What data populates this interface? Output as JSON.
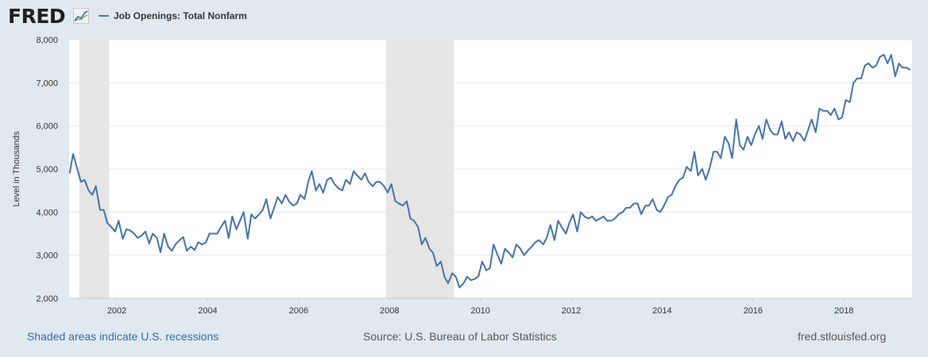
{
  "header": {
    "logo_text": "FRED",
    "logo_icon": "chart-line-icon",
    "series_label": "Job Openings: Total Nonfarm",
    "series_color": "#4572a7"
  },
  "footer": {
    "recessions_note": "Shaded areas indicate U.S. recessions",
    "source": "Source: U.S. Bureau of Labor Statistics",
    "site": "fred.stlouisfed.org"
  },
  "chart_data": {
    "type": "line",
    "title": "",
    "xlabel": "",
    "ylabel": "Level in Thousands",
    "xlim": [
      2000.95,
      2019.5
    ],
    "ylim": [
      2000,
      8000
    ],
    "y_ticks": [
      2000,
      3000,
      4000,
      5000,
      6000,
      7000,
      8000
    ],
    "y_tick_labels": [
      "2,000",
      "3,000",
      "4,000",
      "5,000",
      "6,000",
      "7,000",
      "8,000"
    ],
    "x_ticks": [
      2002,
      2004,
      2006,
      2008,
      2010,
      2012,
      2014,
      2016,
      2018
    ],
    "x_tick_labels": [
      "2002",
      "2004",
      "2006",
      "2008",
      "2010",
      "2012",
      "2014",
      "2016",
      "2018"
    ],
    "grid": true,
    "recessions": [
      [
        2001.17,
        2001.83
      ],
      [
        2007.92,
        2009.42
      ]
    ],
    "recession_color": "#e5e5e5",
    "series": [
      {
        "name": "Job Openings: Total Nonfarm",
        "color": "#4572a7",
        "x": [
          2000.96,
          2001.04,
          2001.13,
          2001.21,
          2001.29,
          2001.38,
          2001.46,
          2001.54,
          2001.63,
          2001.71,
          2001.79,
          2001.88,
          2001.96,
          2002.04,
          2002.13,
          2002.21,
          2002.29,
          2002.38,
          2002.46,
          2002.54,
          2002.63,
          2002.71,
          2002.79,
          2002.88,
          2002.96,
          2003.04,
          2003.13,
          2003.21,
          2003.29,
          2003.38,
          2003.46,
          2003.54,
          2003.63,
          2003.71,
          2003.79,
          2003.88,
          2003.96,
          2004.04,
          2004.13,
          2004.21,
          2004.29,
          2004.38,
          2004.46,
          2004.54,
          2004.63,
          2004.71,
          2004.79,
          2004.88,
          2004.96,
          2005.04,
          2005.13,
          2005.21,
          2005.29,
          2005.38,
          2005.46,
          2005.54,
          2005.63,
          2005.71,
          2005.79,
          2005.88,
          2005.96,
          2006.04,
          2006.13,
          2006.21,
          2006.29,
          2006.38,
          2006.46,
          2006.54,
          2006.63,
          2006.71,
          2006.79,
          2006.88,
          2006.96,
          2007.04,
          2007.13,
          2007.21,
          2007.29,
          2007.38,
          2007.46,
          2007.54,
          2007.63,
          2007.71,
          2007.79,
          2007.88,
          2007.96,
          2008.04,
          2008.13,
          2008.21,
          2008.29,
          2008.38,
          2008.46,
          2008.54,
          2008.63,
          2008.71,
          2008.79,
          2008.88,
          2008.96,
          2009.04,
          2009.13,
          2009.21,
          2009.29,
          2009.38,
          2009.46,
          2009.54,
          2009.63,
          2009.71,
          2009.79,
          2009.88,
          2009.96,
          2010.04,
          2010.13,
          2010.21,
          2010.29,
          2010.38,
          2010.46,
          2010.54,
          2010.63,
          2010.71,
          2010.79,
          2010.88,
          2010.96,
          2011.04,
          2011.13,
          2011.21,
          2011.29,
          2011.38,
          2011.46,
          2011.54,
          2011.63,
          2011.71,
          2011.79,
          2011.88,
          2011.96,
          2012.04,
          2012.13,
          2012.21,
          2012.29,
          2012.38,
          2012.46,
          2012.54,
          2012.63,
          2012.71,
          2012.79,
          2012.88,
          2012.96,
          2013.04,
          2013.13,
          2013.21,
          2013.29,
          2013.38,
          2013.46,
          2013.54,
          2013.63,
          2013.71,
          2013.79,
          2013.88,
          2013.96,
          2014.04,
          2014.13,
          2014.21,
          2014.29,
          2014.38,
          2014.46,
          2014.54,
          2014.63,
          2014.71,
          2014.79,
          2014.88,
          2014.96,
          2015.04,
          2015.13,
          2015.21,
          2015.29,
          2015.38,
          2015.46,
          2015.54,
          2015.63,
          2015.71,
          2015.79,
          2015.88,
          2015.96,
          2016.04,
          2016.13,
          2016.21,
          2016.29,
          2016.38,
          2016.46,
          2016.54,
          2016.63,
          2016.71,
          2016.79,
          2016.88,
          2016.96,
          2017.04,
          2017.13,
          2017.21,
          2017.29,
          2017.38,
          2017.46,
          2017.54,
          2017.63,
          2017.71,
          2017.79,
          2017.88,
          2017.96,
          2018.04,
          2018.13,
          2018.21,
          2018.29,
          2018.38,
          2018.46,
          2018.54,
          2018.63,
          2018.71,
          2018.79,
          2018.88,
          2018.96,
          2019.04,
          2019.13,
          2019.21,
          2019.29,
          2019.38,
          2019.46
        ],
        "values": [
          4900,
          5350,
          5000,
          4700,
          4750,
          4500,
          4400,
          4600,
          4050,
          4050,
          3750,
          3650,
          3550,
          3800,
          3380,
          3600,
          3580,
          3500,
          3400,
          3450,
          3550,
          3270,
          3500,
          3400,
          3070,
          3500,
          3200,
          3100,
          3250,
          3350,
          3420,
          3100,
          3200,
          3120,
          3300,
          3250,
          3300,
          3500,
          3500,
          3500,
          3650,
          3800,
          3400,
          3900,
          3600,
          3800,
          4000,
          3380,
          3950,
          3850,
          3950,
          4050,
          4300,
          3850,
          4100,
          4350,
          4200,
          4400,
          4250,
          4150,
          4200,
          4400,
          4300,
          4700,
          4950,
          4500,
          4650,
          4450,
          4750,
          4800,
          4650,
          4550,
          4500,
          4750,
          4650,
          4950,
          4850,
          4750,
          4900,
          4700,
          4600,
          4700,
          4700,
          4600,
          4450,
          4650,
          4250,
          4200,
          4150,
          4250,
          3850,
          3800,
          3650,
          3250,
          3400,
          3150,
          3050,
          2750,
          2850,
          2500,
          2350,
          2580,
          2500,
          2250,
          2350,
          2500,
          2420,
          2450,
          2520,
          2850,
          2650,
          2700,
          3250,
          3000,
          2800,
          3150,
          3050,
          2950,
          3250,
          3150,
          3000,
          3100,
          3200,
          3300,
          3350,
          3250,
          3400,
          3700,
          3350,
          3800,
          3650,
          3500,
          3750,
          3950,
          3550,
          4000,
          3900,
          3850,
          3900,
          3800,
          3850,
          3900,
          3800,
          3800,
          3850,
          3950,
          4000,
          4100,
          4100,
          4200,
          4200,
          3950,
          4150,
          4150,
          4300,
          4050,
          4000,
          4150,
          4350,
          4400,
          4600,
          4750,
          4800,
          5050,
          4950,
          5400,
          4850,
          5000,
          4750,
          5000,
          5400,
          5400,
          5250,
          5750,
          5600,
          5250,
          6150,
          5550,
          5450,
          5750,
          5550,
          5800,
          6000,
          5700,
          6150,
          5900,
          5800,
          5800,
          6100,
          5700,
          5850,
          5650,
          5850,
          5800,
          5650,
          5900,
          6150,
          5850,
          6400,
          6350,
          6350,
          6250,
          6400,
          6150,
          6200,
          6600,
          6550,
          7000,
          7100,
          7100,
          7400,
          7450,
          7350,
          7400,
          7600,
          7650,
          7450,
          7650,
          7150,
          7450,
          7350,
          7350,
          7300
        ]
      }
    ]
  }
}
